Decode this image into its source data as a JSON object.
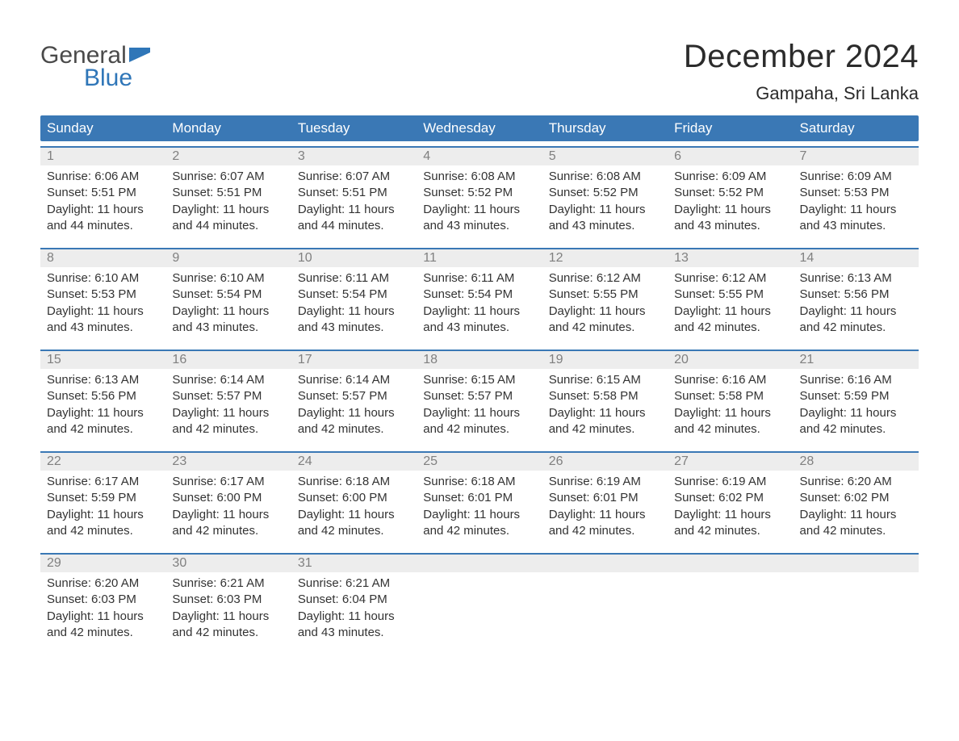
{
  "brand": {
    "word1": "General",
    "word2": "Blue",
    "text_color_top": "#4a4a4a",
    "text_color_bottom": "#2f76b8",
    "flag_color": "#2f76b8"
  },
  "title": "December 2024",
  "location": "Gampaha, Sri Lanka",
  "colors": {
    "header_bg": "#3a78b5",
    "header_text": "#ffffff",
    "daynum_bg": "#ededed",
    "daynum_text": "#808080",
    "body_text": "#333333",
    "separator": "#3a78b5",
    "page_bg": "#ffffff"
  },
  "typography": {
    "title_fontsize": 40,
    "location_fontsize": 22,
    "header_fontsize": 17,
    "daynum_fontsize": 16,
    "detail_fontsize": 15
  },
  "day_headers": [
    "Sunday",
    "Monday",
    "Tuesday",
    "Wednesday",
    "Thursday",
    "Friday",
    "Saturday"
  ],
  "weeks": [
    [
      {
        "n": "1",
        "sunrise": "6:06 AM",
        "sunset": "5:51 PM",
        "dl": "11 hours and 44 minutes."
      },
      {
        "n": "2",
        "sunrise": "6:07 AM",
        "sunset": "5:51 PM",
        "dl": "11 hours and 44 minutes."
      },
      {
        "n": "3",
        "sunrise": "6:07 AM",
        "sunset": "5:51 PM",
        "dl": "11 hours and 44 minutes."
      },
      {
        "n": "4",
        "sunrise": "6:08 AM",
        "sunset": "5:52 PM",
        "dl": "11 hours and 43 minutes."
      },
      {
        "n": "5",
        "sunrise": "6:08 AM",
        "sunset": "5:52 PM",
        "dl": "11 hours and 43 minutes."
      },
      {
        "n": "6",
        "sunrise": "6:09 AM",
        "sunset": "5:52 PM",
        "dl": "11 hours and 43 minutes."
      },
      {
        "n": "7",
        "sunrise": "6:09 AM",
        "sunset": "5:53 PM",
        "dl": "11 hours and 43 minutes."
      }
    ],
    [
      {
        "n": "8",
        "sunrise": "6:10 AM",
        "sunset": "5:53 PM",
        "dl": "11 hours and 43 minutes."
      },
      {
        "n": "9",
        "sunrise": "6:10 AM",
        "sunset": "5:54 PM",
        "dl": "11 hours and 43 minutes."
      },
      {
        "n": "10",
        "sunrise": "6:11 AM",
        "sunset": "5:54 PM",
        "dl": "11 hours and 43 minutes."
      },
      {
        "n": "11",
        "sunrise": "6:11 AM",
        "sunset": "5:54 PM",
        "dl": "11 hours and 43 minutes."
      },
      {
        "n": "12",
        "sunrise": "6:12 AM",
        "sunset": "5:55 PM",
        "dl": "11 hours and 42 minutes."
      },
      {
        "n": "13",
        "sunrise": "6:12 AM",
        "sunset": "5:55 PM",
        "dl": "11 hours and 42 minutes."
      },
      {
        "n": "14",
        "sunrise": "6:13 AM",
        "sunset": "5:56 PM",
        "dl": "11 hours and 42 minutes."
      }
    ],
    [
      {
        "n": "15",
        "sunrise": "6:13 AM",
        "sunset": "5:56 PM",
        "dl": "11 hours and 42 minutes."
      },
      {
        "n": "16",
        "sunrise": "6:14 AM",
        "sunset": "5:57 PM",
        "dl": "11 hours and 42 minutes."
      },
      {
        "n": "17",
        "sunrise": "6:14 AM",
        "sunset": "5:57 PM",
        "dl": "11 hours and 42 minutes."
      },
      {
        "n": "18",
        "sunrise": "6:15 AM",
        "sunset": "5:57 PM",
        "dl": "11 hours and 42 minutes."
      },
      {
        "n": "19",
        "sunrise": "6:15 AM",
        "sunset": "5:58 PM",
        "dl": "11 hours and 42 minutes."
      },
      {
        "n": "20",
        "sunrise": "6:16 AM",
        "sunset": "5:58 PM",
        "dl": "11 hours and 42 minutes."
      },
      {
        "n": "21",
        "sunrise": "6:16 AM",
        "sunset": "5:59 PM",
        "dl": "11 hours and 42 minutes."
      }
    ],
    [
      {
        "n": "22",
        "sunrise": "6:17 AM",
        "sunset": "5:59 PM",
        "dl": "11 hours and 42 minutes."
      },
      {
        "n": "23",
        "sunrise": "6:17 AM",
        "sunset": "6:00 PM",
        "dl": "11 hours and 42 minutes."
      },
      {
        "n": "24",
        "sunrise": "6:18 AM",
        "sunset": "6:00 PM",
        "dl": "11 hours and 42 minutes."
      },
      {
        "n": "25",
        "sunrise": "6:18 AM",
        "sunset": "6:01 PM",
        "dl": "11 hours and 42 minutes."
      },
      {
        "n": "26",
        "sunrise": "6:19 AM",
        "sunset": "6:01 PM",
        "dl": "11 hours and 42 minutes."
      },
      {
        "n": "27",
        "sunrise": "6:19 AM",
        "sunset": "6:02 PM",
        "dl": "11 hours and 42 minutes."
      },
      {
        "n": "28",
        "sunrise": "6:20 AM",
        "sunset": "6:02 PM",
        "dl": "11 hours and 42 minutes."
      }
    ],
    [
      {
        "n": "29",
        "sunrise": "6:20 AM",
        "sunset": "6:03 PM",
        "dl": "11 hours and 42 minutes."
      },
      {
        "n": "30",
        "sunrise": "6:21 AM",
        "sunset": "6:03 PM",
        "dl": "11 hours and 42 minutes."
      },
      {
        "n": "31",
        "sunrise": "6:21 AM",
        "sunset": "6:04 PM",
        "dl": "11 hours and 43 minutes."
      },
      null,
      null,
      null,
      null
    ]
  ],
  "labels": {
    "sunrise": "Sunrise:",
    "sunset": "Sunset:",
    "daylight": "Daylight:"
  }
}
